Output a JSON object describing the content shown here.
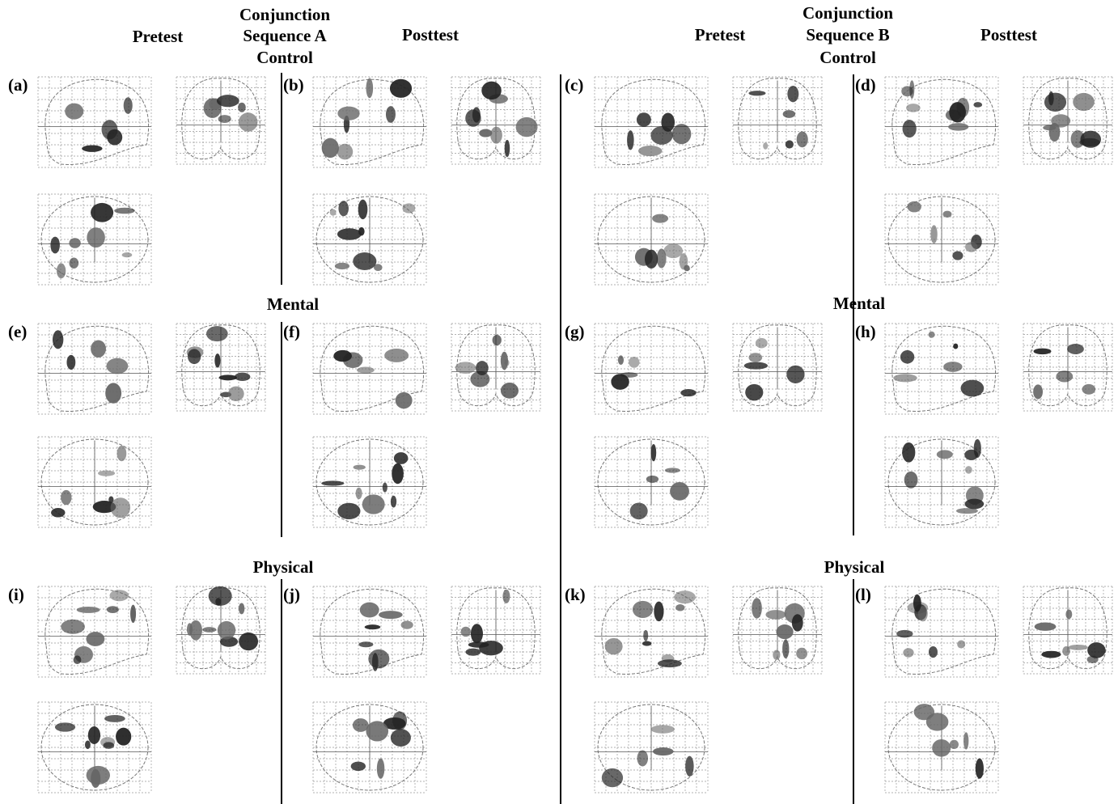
{
  "header": {
    "left": {
      "pretest": "Pretest",
      "title": [
        "Conjunction",
        "Sequence A",
        "Control"
      ],
      "posttest": "Posttest"
    },
    "right": {
      "pretest": "Pretest",
      "title": [
        "Conjunction",
        "Sequence B",
        "Control"
      ],
      "posttest": "Posttest"
    }
  },
  "sections": [
    {
      "panels": [
        "(a)",
        "(b)",
        "(c)",
        "(d)"
      ]
    },
    {
      "titles": [
        "Mental",
        "Mental"
      ],
      "panels": [
        "(e)",
        "(f)",
        "(g)",
        "(h)"
      ]
    },
    {
      "titles": [
        "Physical",
        "Physical"
      ],
      "panels": [
        "(i)",
        "(j)",
        "(k)",
        "(l)"
      ]
    }
  ]
}
